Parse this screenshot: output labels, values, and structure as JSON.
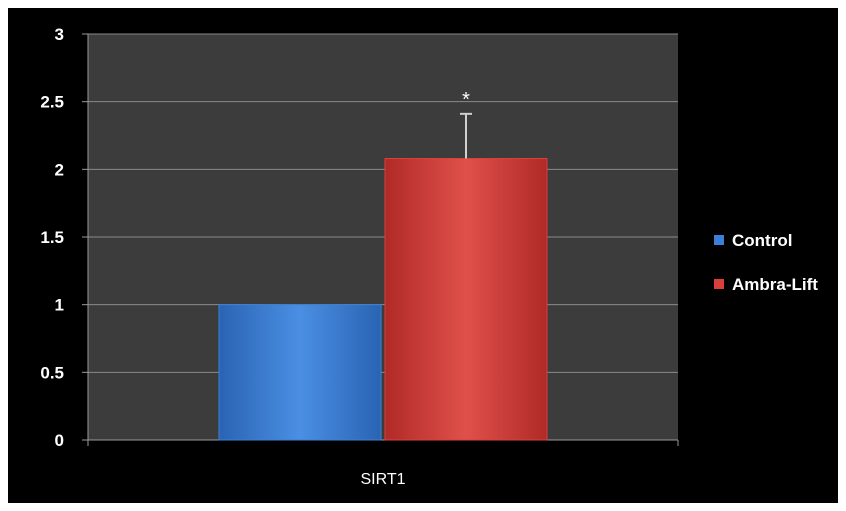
{
  "chart_data": {
    "type": "bar",
    "title": "",
    "xlabel": "",
    "ylabel": "",
    "categories": [
      "SIRT1"
    ],
    "series": [
      {
        "name": "Control",
        "values": [
          1.0
        ],
        "error": [
          null
        ],
        "color": "#3b7fd6"
      },
      {
        "name": "Ambra-Lift",
        "values": [
          2.08
        ],
        "error": [
          0.33
        ],
        "color": "#d9403b"
      }
    ],
    "annotations": [
      {
        "series": "Ambra-Lift",
        "category": "SIRT1",
        "text": "*"
      }
    ],
    "ylim": [
      0,
      3
    ],
    "yticks": [
      0,
      0.5,
      1,
      1.5,
      2,
      2.5,
      3
    ],
    "ytick_labels": [
      "0",
      "0.5",
      "1",
      "1.5",
      "2",
      "2.5",
      "3"
    ],
    "grid": true,
    "legend_position": "right",
    "background_color": "#000000",
    "plot_area_color": "#3c3c3c",
    "gridline_color": "#8a8a8a",
    "text_color": "#ffffff"
  }
}
